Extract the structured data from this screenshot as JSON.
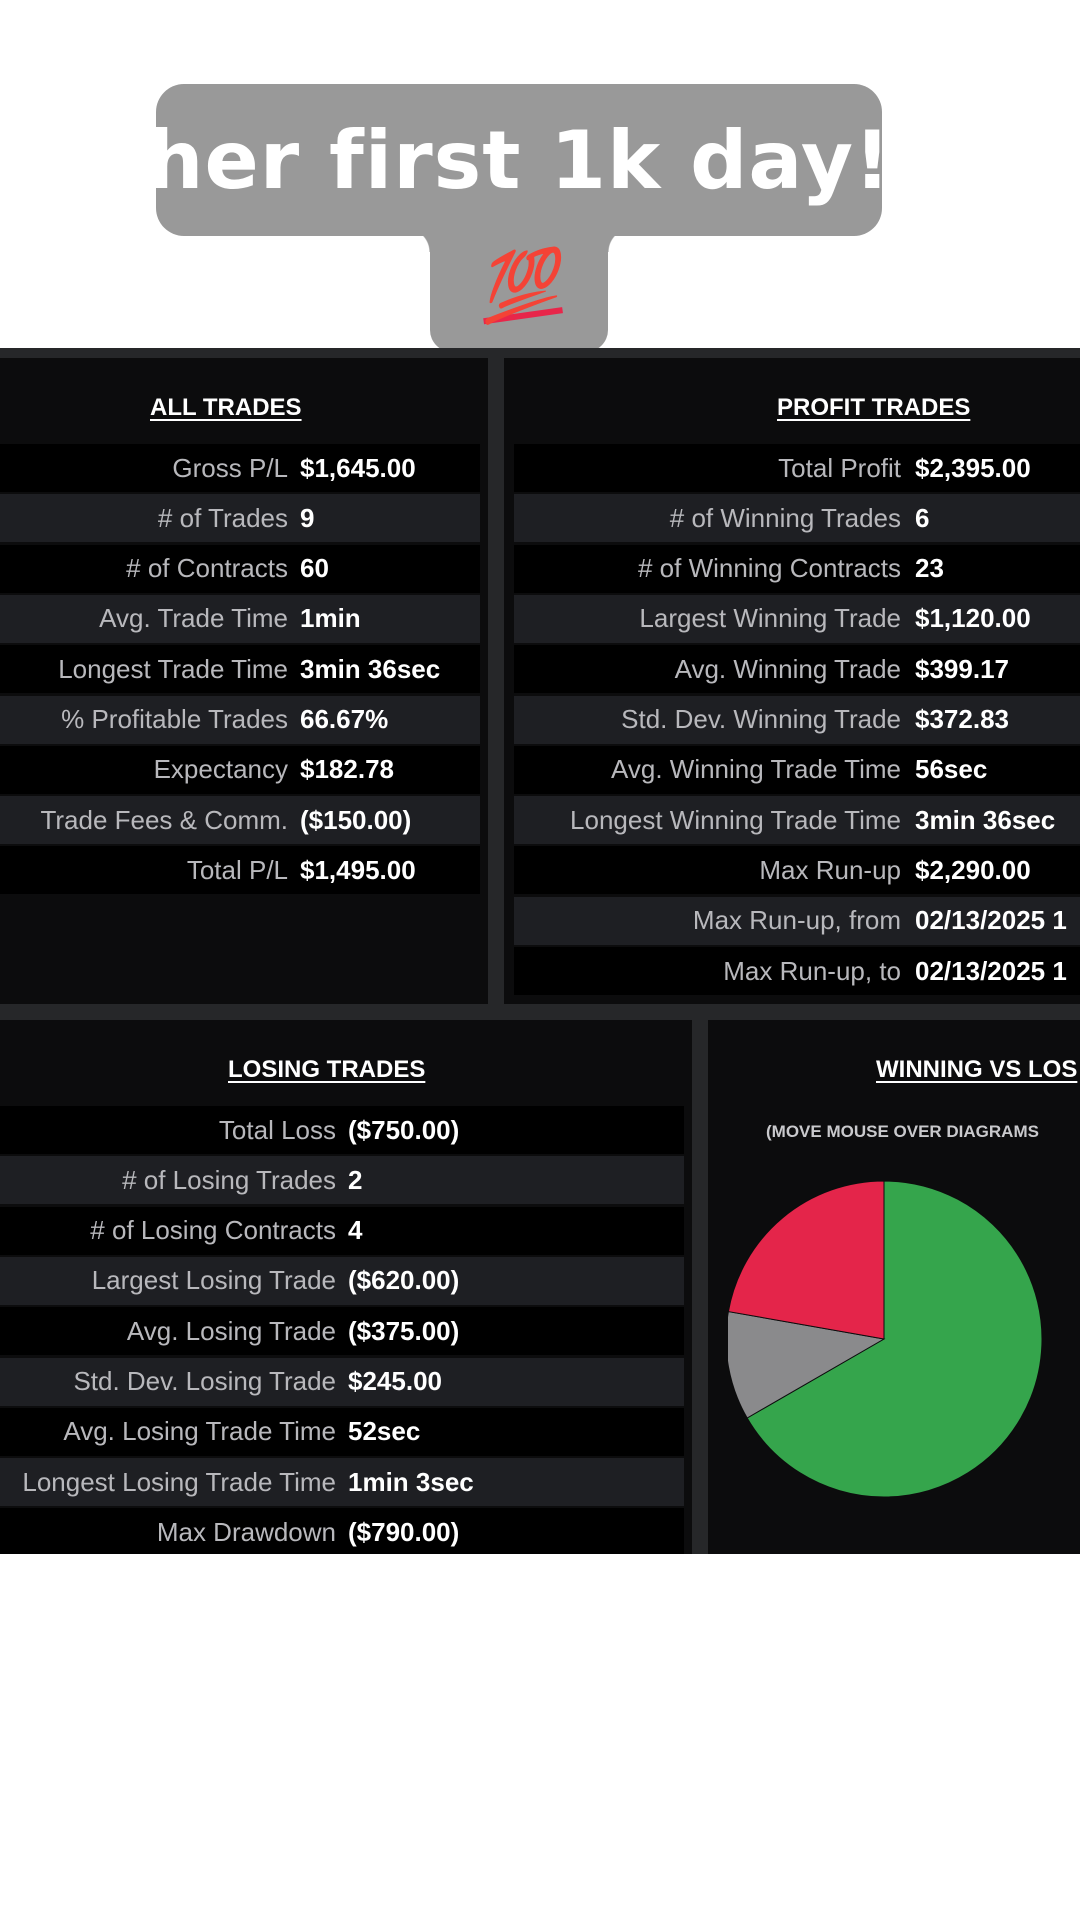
{
  "caption": {
    "text": "her first 1k day!",
    "emoji": "💯"
  },
  "all_trades": {
    "title": "ALL TRADES",
    "rows": [
      {
        "label": "Gross P/L",
        "value": "$1,645.00"
      },
      {
        "label": "# of Trades",
        "value": "9"
      },
      {
        "label": "# of Contracts",
        "value": "60"
      },
      {
        "label": "Avg. Trade Time",
        "value": "1min"
      },
      {
        "label": "Longest Trade Time",
        "value": "3min 36sec"
      },
      {
        "label": "% Profitable Trades",
        "value": "66.67%"
      },
      {
        "label": "Expectancy",
        "value": "$182.78"
      },
      {
        "label": "Trade Fees & Comm.",
        "value": "($150.00)"
      },
      {
        "label": "Total P/L",
        "value": "$1,495.00"
      }
    ]
  },
  "profit_trades": {
    "title": "PROFIT TRADES",
    "rows": [
      {
        "label": "Total Profit",
        "value": "$2,395.00"
      },
      {
        "label": "# of Winning Trades",
        "value": "6"
      },
      {
        "label": "# of Winning Contracts",
        "value": "23"
      },
      {
        "label": "Largest Winning Trade",
        "value": "$1,120.00"
      },
      {
        "label": "Avg. Winning Trade",
        "value": "$399.17"
      },
      {
        "label": "Std. Dev. Winning Trade",
        "value": "$372.83"
      },
      {
        "label": "Avg. Winning Trade Time",
        "value": "56sec"
      },
      {
        "label": "Longest Winning Trade Time",
        "value": "3min 36sec"
      },
      {
        "label": "Max Run-up",
        "value": "$2,290.00"
      },
      {
        "label": "Max Run-up, from",
        "value": "02/13/2025 1"
      },
      {
        "label": "Max Run-up, to",
        "value": "02/13/2025 1"
      }
    ]
  },
  "losing_trades": {
    "title": "LOSING TRADES",
    "rows": [
      {
        "label": "Total Loss",
        "value": "($750.00)"
      },
      {
        "label": "# of Losing Trades",
        "value": "2"
      },
      {
        "label": "# of Losing Contracts",
        "value": "4"
      },
      {
        "label": "Largest Losing Trade",
        "value": "($620.00)"
      },
      {
        "label": "Avg. Losing Trade",
        "value": "($375.00)"
      },
      {
        "label": "Std. Dev. Losing Trade",
        "value": "$245.00"
      },
      {
        "label": "Avg. Losing Trade Time",
        "value": "52sec"
      },
      {
        "label": "Longest Losing Trade Time",
        "value": "1min 3sec"
      },
      {
        "label": "Max Drawdown",
        "value": "($790.00)"
      }
    ]
  },
  "winning_vs_losing": {
    "title": "WINNING VS LOS",
    "subtitle": "(MOVE MOUSE OVER DIAGRAMS"
  },
  "chart_data": {
    "type": "pie",
    "title": "WINNING VS LOS",
    "slices": [
      {
        "value": 6,
        "color": "#35a54c"
      },
      {
        "value": 1,
        "color": "#8a8a8c"
      },
      {
        "value": 2,
        "color": "#e4254a"
      }
    ]
  }
}
